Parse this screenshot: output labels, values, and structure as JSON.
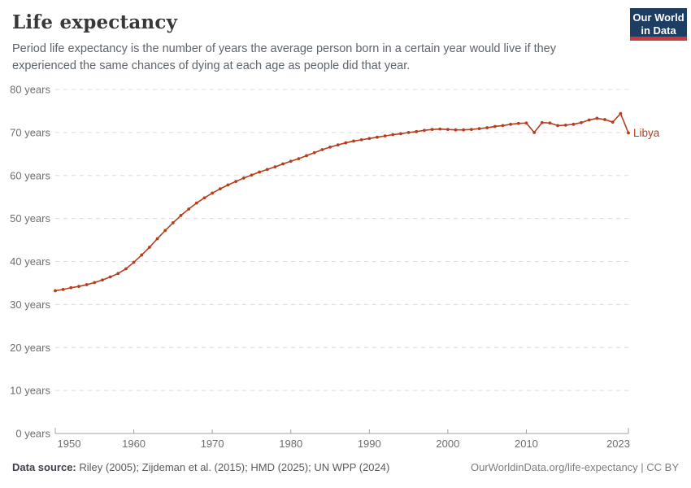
{
  "header": {
    "title": "Life expectancy",
    "subtitle": "Period life expectancy is the number of years the average person born in a certain year would live if they experienced the same chances of dying at each age as people did that year.",
    "logo": {
      "line1": "Our World",
      "line2": "in Data",
      "bg_color": "#1d3d63",
      "accent_color": "#c93a3a"
    }
  },
  "chart_data": {
    "type": "line",
    "title": "Life expectancy",
    "xlabel": "",
    "ylabel": "",
    "grid": "horizontal-dashed",
    "legend_position": "end-of-line-label",
    "xlim": [
      1950,
      2023
    ],
    "ylim": [
      0,
      80
    ],
    "x_ticks": [
      1950,
      1960,
      1970,
      1980,
      1990,
      2000,
      2010,
      2023
    ],
    "x_tick_labels": [
      "1950",
      "1960",
      "1970",
      "1980",
      "1990",
      "2000",
      "2010",
      "2023"
    ],
    "y_ticks": [
      0,
      10,
      20,
      30,
      40,
      50,
      60,
      70,
      80
    ],
    "y_tick_labels": [
      "0 years",
      "10 years",
      "20 years",
      "30 years",
      "40 years",
      "50 years",
      "60 years",
      "70 years",
      "80 years"
    ],
    "series": [
      {
        "name": "Libya",
        "end_label": "Libya",
        "color": "#b53e1f",
        "x": [
          1950,
          1951,
          1952,
          1953,
          1954,
          1955,
          1956,
          1957,
          1958,
          1959,
          1960,
          1961,
          1962,
          1963,
          1964,
          1965,
          1966,
          1967,
          1968,
          1969,
          1970,
          1971,
          1972,
          1973,
          1974,
          1975,
          1976,
          1977,
          1978,
          1979,
          1980,
          1981,
          1982,
          1983,
          1984,
          1985,
          1986,
          1987,
          1988,
          1989,
          1990,
          1991,
          1992,
          1993,
          1994,
          1995,
          1996,
          1997,
          1998,
          1999,
          2000,
          2001,
          2002,
          2003,
          2004,
          2005,
          2006,
          2007,
          2008,
          2009,
          2010,
          2011,
          2012,
          2013,
          2014,
          2015,
          2016,
          2017,
          2018,
          2019,
          2020,
          2021,
          2022,
          2023
        ],
        "values": [
          33.2,
          33.5,
          33.9,
          34.2,
          34.6,
          35.1,
          35.7,
          36.4,
          37.2,
          38.3,
          39.8,
          41.5,
          43.3,
          45.3,
          47.2,
          49.0,
          50.7,
          52.2,
          53.6,
          54.8,
          55.9,
          56.9,
          57.8,
          58.6,
          59.4,
          60.1,
          60.8,
          61.4,
          62.0,
          62.7,
          63.3,
          63.9,
          64.6,
          65.3,
          66.0,
          66.6,
          67.1,
          67.6,
          68.0,
          68.3,
          68.6,
          68.9,
          69.2,
          69.5,
          69.7,
          70.0,
          70.2,
          70.5,
          70.7,
          70.8,
          70.7,
          70.6,
          70.6,
          70.7,
          70.9,
          71.1,
          71.4,
          71.6,
          71.9,
          72.1,
          72.2,
          70.0,
          72.3,
          72.2,
          71.6,
          71.7,
          71.9,
          72.3,
          72.9,
          73.3,
          73.0,
          72.4,
          74.4,
          69.9
        ]
      }
    ],
    "colors": {
      "gridline": "#dcdcdc",
      "axis": "#a0a0a0",
      "tick_text": "#6e6e6e"
    }
  },
  "footer": {
    "source_label": "Data source:",
    "source_text": " Riley (2005); Zijdeman et al. (2015); HMD (2025); UN WPP (2024)",
    "link_text": "OurWorldinData.org/life-expectancy | CC BY"
  }
}
